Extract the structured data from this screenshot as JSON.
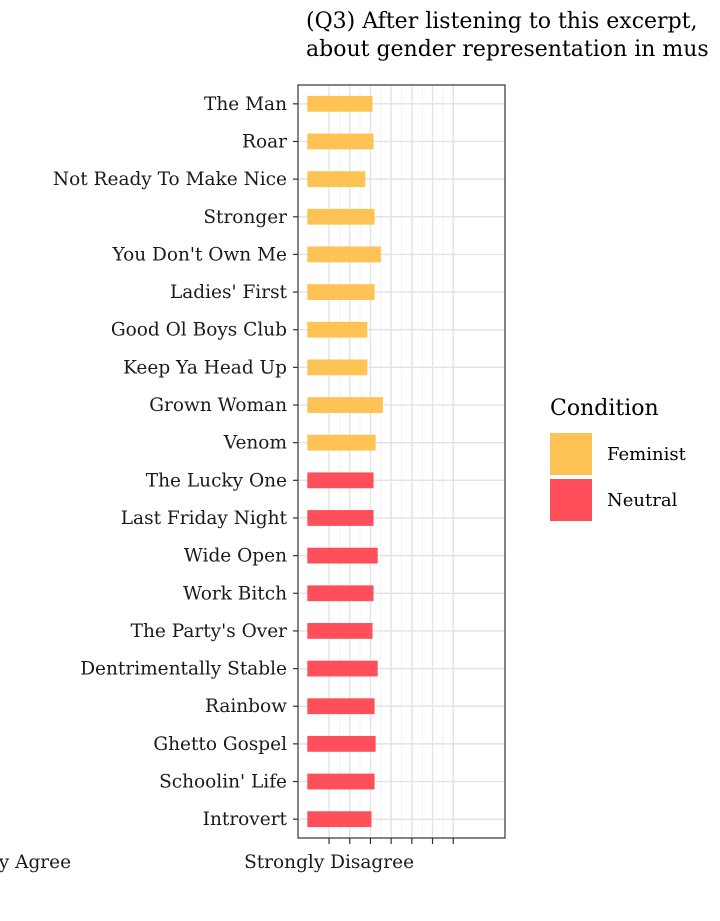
{
  "chart_data": {
    "type": "bar",
    "orientation": "horizontal",
    "title": "(Q3) After listening to this excerpt, about gender representation in mus",
    "title_lines": [
      "(Q3) After listening to this excerpt,",
      "about gender representation in mus"
    ],
    "categories": [
      "The Man",
      "Roar",
      "Not Ready To Make Nice",
      "Stronger",
      "You Don't Own Me",
      "Ladies' First",
      "Good Ol Boys Club",
      "Keep Ya Head Up",
      "Grown Woman",
      "Venom",
      "The Lucky One",
      "Last Friday Night",
      "Wide Open",
      "Work Bitch",
      "The Party's Over",
      "Dentrimentally Stable",
      "Rainbow",
      "Ghetto Gospel",
      "Schoolin' Life",
      "Introvert"
    ],
    "conditions": [
      "Feminist",
      "Feminist",
      "Feminist",
      "Feminist",
      "Feminist",
      "Feminist",
      "Feminist",
      "Feminist",
      "Feminist",
      "Feminist",
      "Neutral",
      "Neutral",
      "Neutral",
      "Neutral",
      "Neutral",
      "Neutral",
      "Neutral",
      "Neutral",
      "Neutral",
      "Neutral"
    ],
    "values": [
      3.1,
      3.15,
      2.75,
      3.2,
      3.5,
      3.2,
      2.85,
      2.85,
      3.6,
      3.25,
      3.15,
      3.15,
      3.35,
      3.15,
      3.1,
      3.35,
      3.2,
      3.25,
      3.2,
      3.05
    ],
    "x_ticks": [
      1,
      2,
      3,
      4,
      5,
      6,
      7
    ],
    "x_tick_labels": [
      "Strongly Disagree",
      "",
      "",
      "",
      "Strongly Agree",
      "",
      ""
    ],
    "x_tick_label_positions": [
      1,
      4
    ],
    "xlim": [
      -0.5,
      9.5
    ],
    "legend": {
      "title": "Condition",
      "position": "right",
      "items": [
        {
          "label": "Feminist",
          "color": "#FEC255"
        },
        {
          "label": "Neutral",
          "color": "#FE4F5A"
        }
      ]
    },
    "grid": true
  }
}
